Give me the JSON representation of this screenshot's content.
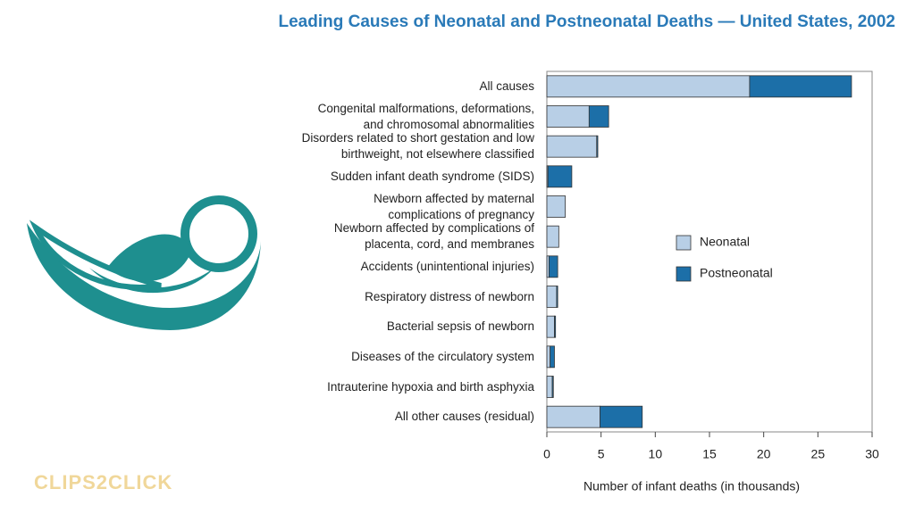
{
  "chart_data": {
    "type": "stacked-barh",
    "title": "Leading Causes of Neonatal and Postneonatal Deaths — United States, 2002",
    "xlabel": "Number of infant deaths (in thousands)",
    "categories": [
      "All causes",
      "Congenital malformations, deformations,\nand chromosomal abnormalities",
      "Disorders related to short gestation and low\nbirthweight, not elsewhere classified",
      "Sudden infant death syndrome (SIDS)",
      "Newborn affected by maternal\ncomplications of pregnancy",
      "Newborn affected by complications of\nplacenta, cord, and membranes",
      "Accidents (unintentional injuries)",
      "Respiratory distress of newborn",
      "Bacterial sepsis of newborn",
      "Diseases of the circulatory system",
      "Intrauterine hypoxia and birth asphyxia",
      "All other causes (residual)"
    ],
    "series": [
      {
        "name": "Neonatal",
        "color": "#b8cfe6",
        "values": [
          18.7,
          3.9,
          4.6,
          0.1,
          1.7,
          1.1,
          0.2,
          0.9,
          0.7,
          0.3,
          0.5,
          4.9
        ]
      },
      {
        "name": "Postneonatal",
        "color": "#1c6fa8",
        "values": [
          9.4,
          1.8,
          0.1,
          2.2,
          0.0,
          0.0,
          0.8,
          0.1,
          0.1,
          0.4,
          0.1,
          3.9
        ]
      }
    ],
    "xlim": [
      0,
      30
    ],
    "xticks": [
      0,
      5,
      10,
      15,
      20,
      25,
      30
    ],
    "legend": "right"
  },
  "watermark": "CLIPS2CLICK"
}
